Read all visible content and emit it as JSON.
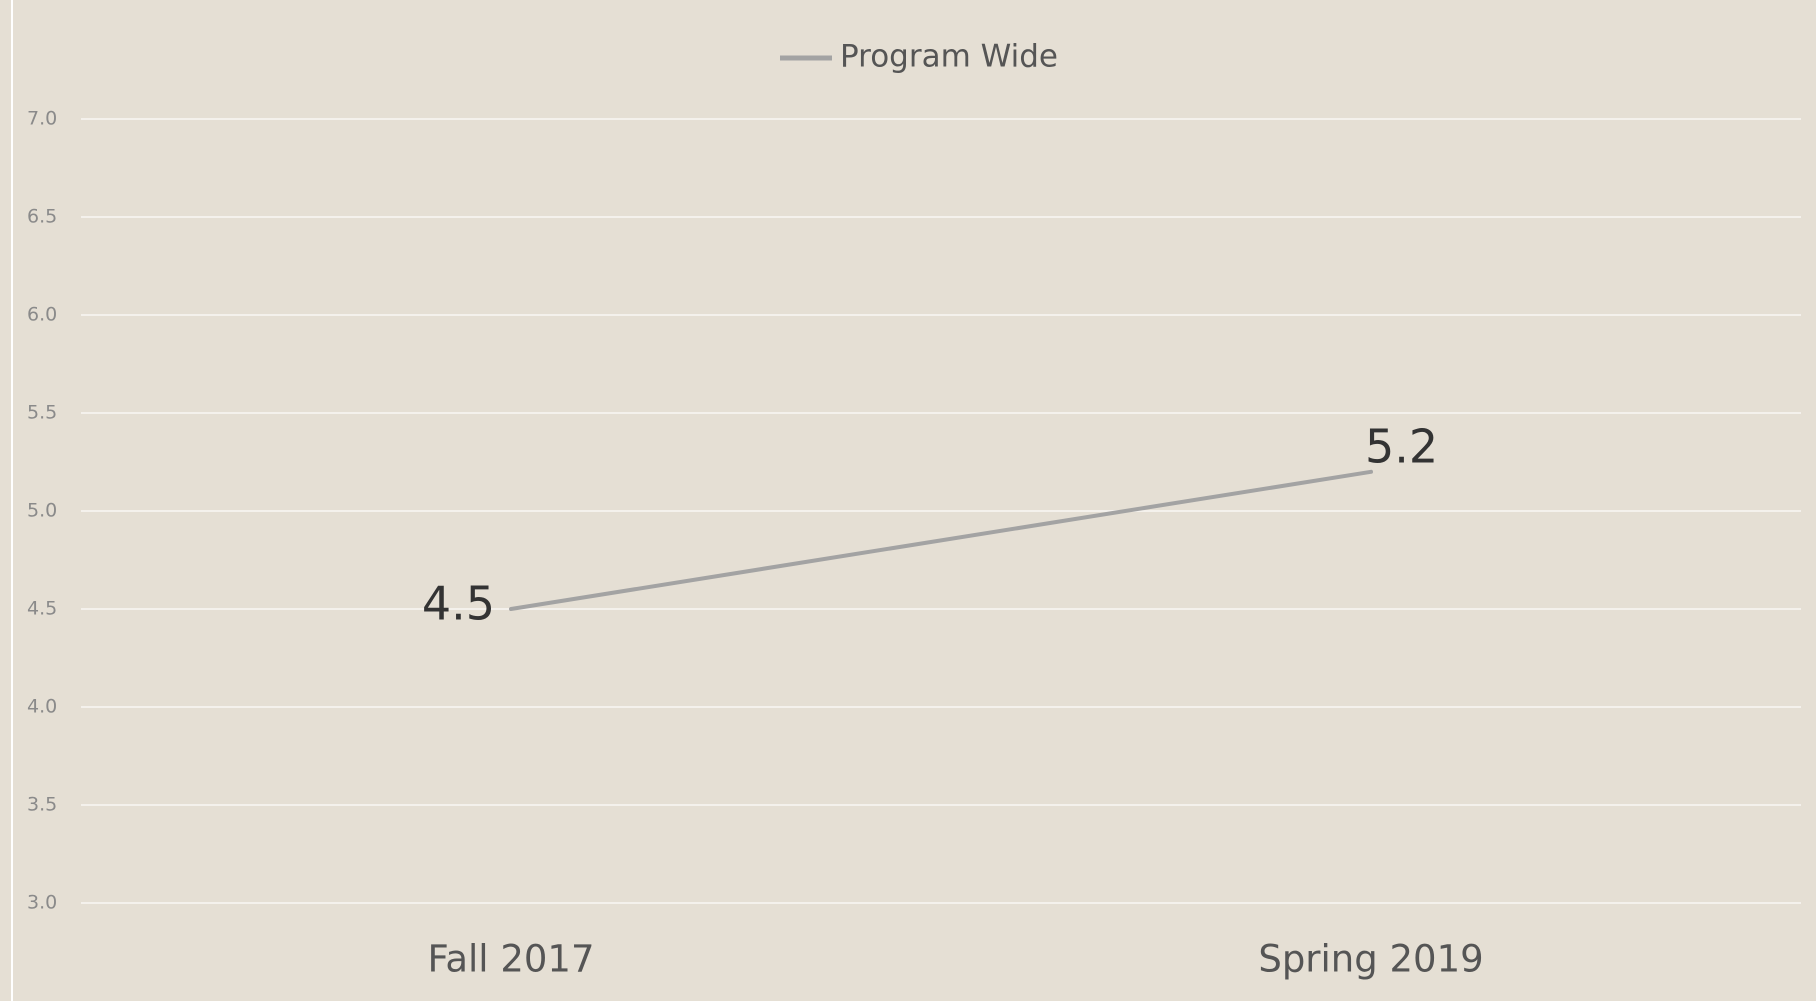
{
  "chart_data": {
    "type": "line",
    "categories": [
      "Fall 2017",
      "Spring 2019"
    ],
    "series": [
      {
        "name": "Program Wide",
        "color": "#a3a3a3",
        "values": [
          4.5,
          5.2
        ]
      }
    ],
    "ylim": [
      3,
      7
    ],
    "yticks": [
      {
        "value": 3,
        "label": "3.0"
      },
      3.5,
      {
        "value": 4,
        "label": "4.0"
      },
      4.5,
      {
        "value": 5,
        "label": "5.0"
      },
      5.5,
      {
        "value": 6,
        "label": "6.0"
      },
      6.5,
      {
        "value": 7,
        "label": "7.0"
      }
    ],
    "grid": true,
    "legend": "top"
  }
}
